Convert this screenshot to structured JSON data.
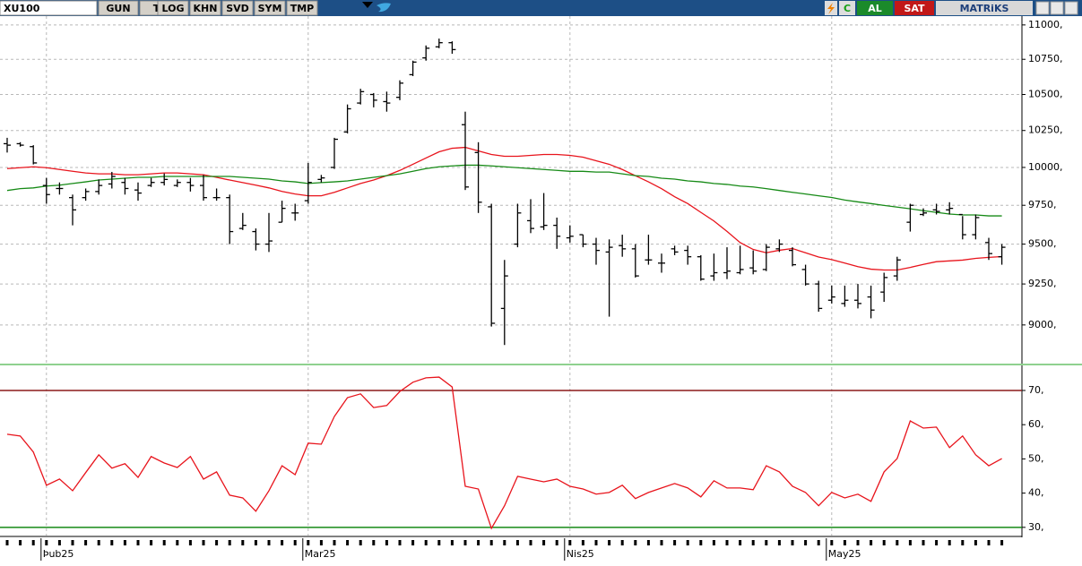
{
  "toolbar": {
    "symbol": "XU100",
    "buttons": [
      "GUN",
      "TL",
      "LOG",
      "KHN",
      "SVD",
      "SYM",
      "TMP"
    ],
    "right": {
      "c": "C",
      "buy": "AL",
      "sell": "SAT",
      "brand": "MATRiKS"
    }
  },
  "chart_data": [
    {
      "type": "ohlc",
      "log": true,
      "grid": true,
      "color": "#000000",
      "categories": [
        null,
        null,
        null,
        "Þub25",
        null,
        null,
        null,
        null,
        null,
        null,
        null,
        null,
        null,
        null,
        null,
        null,
        null,
        null,
        null,
        null,
        null,
        null,
        null,
        "Mar25",
        null,
        null,
        null,
        null,
        null,
        null,
        null,
        null,
        null,
        null,
        null,
        null,
        null,
        null,
        null,
        null,
        null,
        null,
        null,
        "Nis25",
        null,
        null,
        null,
        null,
        null,
        null,
        null,
        null,
        null,
        null,
        null,
        null,
        null,
        null,
        null,
        null,
        null,
        null,
        null,
        "May25",
        null,
        null,
        null,
        null,
        null,
        null,
        null,
        null,
        null,
        null,
        null,
        null,
        null
      ],
      "open": [
        10160,
        10160,
        10140,
        9880,
        9860,
        9800,
        9800,
        9840,
        9890,
        9900,
        9850,
        9880,
        9900,
        9880,
        9900,
        9880,
        9800,
        9800,
        9600,
        9580,
        9500,
        9640,
        9700,
        9780,
        9920,
        10000,
        10240,
        10440,
        10500,
        10450,
        10480,
        10640,
        10760,
        10840,
        10870,
        10290,
        10100,
        9740,
        9100,
        9500,
        9650,
        9610,
        9620,
        9540,
        9560,
        9500,
        9450,
        9490,
        9470,
        9400,
        9380,
        9470,
        9460,
        9420,
        9300,
        9320,
        9320,
        9350,
        9340,
        9470,
        9460,
        9340,
        9250,
        9150,
        9130,
        9150,
        9170,
        9200,
        9300,
        9640,
        9690,
        9720,
        9720,
        9690,
        9560,
        9510,
        9420
      ],
      "high": [
        10200,
        10170,
        10150,
        9930,
        9900,
        9820,
        9860,
        9920,
        9970,
        9930,
        9900,
        9930,
        9960,
        9920,
        9930,
        9950,
        9860,
        9820,
        9700,
        9600,
        9700,
        9780,
        9760,
        10030,
        9950,
        10200,
        10430,
        10540,
        10510,
        10520,
        10600,
        10740,
        10850,
        10900,
        10880,
        10380,
        10170,
        9760,
        9400,
        9760,
        9790,
        9830,
        9670,
        9620,
        9560,
        9540,
        9530,
        9560,
        9500,
        9560,
        9440,
        9490,
        9490,
        9430,
        9440,
        9480,
        9490,
        9460,
        9500,
        9530,
        9480,
        9370,
        9270,
        9240,
        9240,
        9250,
        9240,
        9320,
        9420,
        9760,
        9730,
        9760,
        9770,
        9680,
        9690,
        9540,
        9500
      ],
      "low": [
        10100,
        10140,
        10020,
        9760,
        9820,
        9620,
        9780,
        9820,
        9860,
        9820,
        9780,
        9870,
        9880,
        9870,
        9840,
        9780,
        9780,
        9500,
        9590,
        9460,
        9450,
        9640,
        9650,
        9760,
        9900,
        9990,
        10230,
        10430,
        10410,
        10380,
        10460,
        10630,
        10740,
        10830,
        10790,
        9850,
        9700,
        8990,
        8880,
        9480,
        9570,
        9590,
        9470,
        9510,
        9480,
        9370,
        9050,
        9420,
        9290,
        9370,
        9320,
        9430,
        9370,
        9270,
        9270,
        9280,
        9310,
        9310,
        9330,
        9450,
        9360,
        9240,
        9080,
        9130,
        9110,
        9100,
        9040,
        9140,
        9270,
        9580,
        9680,
        9690,
        9690,
        9530,
        9530,
        9400,
        9370
      ],
      "close": [
        10150,
        10150,
        10030,
        9820,
        9860,
        9720,
        9840,
        9880,
        9940,
        9860,
        9830,
        9900,
        9920,
        9900,
        9880,
        9800,
        9800,
        9580,
        9620,
        9500,
        9520,
        9730,
        9700,
        9900,
        9930,
        10190,
        10400,
        10520,
        10460,
        10440,
        10580,
        10730,
        10830,
        10870,
        10820,
        9870,
        9770,
        9010,
        9300,
        9700,
        9600,
        9620,
        9550,
        9550,
        9500,
        9460,
        9480,
        9470,
        9300,
        9400,
        9380,
        9450,
        9420,
        9280,
        9320,
        9330,
        9340,
        9330,
        9480,
        9500,
        9370,
        9250,
        9100,
        9170,
        9150,
        9130,
        9090,
        9290,
        9400,
        9750,
        9700,
        9710,
        9730,
        9560,
        9670,
        9440,
        9480
      ],
      "lines": [
        {
          "color": "#e8141c",
          "values": [
            9992,
            9998,
            10004,
            9998,
            9986,
            9974,
            9963,
            9957,
            9957,
            9951,
            9951,
            9957,
            9963,
            9963,
            9957,
            9951,
            9934,
            9916,
            9899,
            9882,
            9864,
            9841,
            9824,
            9812,
            9812,
            9835,
            9864,
            9893,
            9916,
            9945,
            9980,
            10021,
            10063,
            10105,
            10129,
            10135,
            10111,
            10087,
            10075,
            10075,
            10081,
            10087,
            10087,
            10081,
            10069,
            10045,
            10021,
            9986,
            9945,
            9904,
            9859,
            9806,
            9761,
            9704,
            9648,
            9581,
            9510,
            9466,
            9445,
            9461,
            9472,
            9445,
            9418,
            9402,
            9380,
            9358,
            9342,
            9337,
            9337,
            9353,
            9372,
            9389,
            9394,
            9399,
            9410,
            9416,
            9421
          ]
        },
        {
          "color": "#168a16",
          "values": [
            9847,
            9859,
            9864,
            9876,
            9882,
            9893,
            9904,
            9916,
            9922,
            9928,
            9934,
            9934,
            9940,
            9940,
            9940,
            9940,
            9940,
            9940,
            9934,
            9928,
            9922,
            9910,
            9904,
            9893,
            9899,
            9904,
            9910,
            9922,
            9934,
            9945,
            9957,
            9974,
            9992,
            10004,
            10010,
            10015,
            10015,
            10010,
            10004,
            9998,
            9992,
            9986,
            9980,
            9974,
            9974,
            9969,
            9969,
            9957,
            9945,
            9940,
            9928,
            9922,
            9910,
            9904,
            9893,
            9887,
            9876,
            9870,
            9859,
            9847,
            9835,
            9824,
            9812,
            9801,
            9784,
            9772,
            9761,
            9749,
            9738,
            9727,
            9715,
            9704,
            9693,
            9687,
            9687,
            9681,
            9681
          ]
        }
      ],
      "ylim": [
        8765,
        11065
      ],
      "yticks": [
        {
          "value": 9000,
          "label": "9000,"
        },
        {
          "value": 9250,
          "label": "9250,"
        },
        {
          "value": 9500,
          "label": "9500,"
        },
        {
          "value": 9750,
          "label": "9750,"
        },
        {
          "value": 10000,
          "label": "10000,"
        },
        {
          "value": 10250,
          "label": "10250,"
        },
        {
          "value": 10500,
          "label": "10500,"
        },
        {
          "value": 10750,
          "label": "10750,"
        },
        {
          "value": 11000,
          "label": "11000,"
        }
      ]
    },
    {
      "type": "line",
      "color": "#e8141c",
      "values": [
        57.2,
        56.7,
        52,
        42.3,
        44.1,
        40.7,
        46,
        51.2,
        47.3,
        48.6,
        44.6,
        50.7,
        48.8,
        47.5,
        50.7,
        44.1,
        46.2,
        39.4,
        38.6,
        34.7,
        40.7,
        48,
        45.4,
        54.6,
        54.3,
        62.4,
        67.9,
        69,
        65,
        65.6,
        69.7,
        72.4,
        73.7,
        73.9,
        71,
        42,
        41.2,
        29.7,
        36.3,
        44.9,
        44.1,
        43.3,
        44.1,
        42,
        41.2,
        39.7,
        40.2,
        42.3,
        38.4,
        40.2,
        41.5,
        42.8,
        41.5,
        38.9,
        43.6,
        41.5,
        41.5,
        41,
        48,
        46.2,
        42,
        40.2,
        36.3,
        40.2,
        38.6,
        39.7,
        37.6,
        46.2,
        50.1,
        61.1,
        59,
        59.3,
        53.3,
        56.7,
        51.2,
        48,
        50.1
      ],
      "reference_lines": [
        {
          "value": 70,
          "color": "#8b1a1a"
        },
        {
          "value": 30,
          "color": "#168a16"
        }
      ],
      "ylim": [
        27.6,
        76.8
      ],
      "yticks": [
        {
          "value": 30,
          "label": "30,"
        },
        {
          "value": 40,
          "label": "40,"
        },
        {
          "value": 50,
          "label": "50,"
        },
        {
          "value": 60,
          "label": "60,"
        },
        {
          "value": 70,
          "label": "70,"
        }
      ]
    }
  ]
}
